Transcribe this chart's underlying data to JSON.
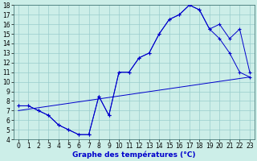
{
  "title": "Graphe des températures (°C)",
  "xlim": [
    -0.5,
    23.5
  ],
  "ylim": [
    4,
    18
  ],
  "xticks": [
    0,
    1,
    2,
    3,
    4,
    5,
    6,
    7,
    8,
    9,
    10,
    11,
    12,
    13,
    14,
    15,
    16,
    17,
    18,
    19,
    20,
    21,
    22,
    23
  ],
  "yticks": [
    4,
    5,
    6,
    7,
    8,
    9,
    10,
    11,
    12,
    13,
    14,
    15,
    16,
    17,
    18
  ],
  "bg_color": "#cceee8",
  "line_color": "#0000cc",
  "line1_x": [
    0,
    1,
    2,
    3,
    4,
    5,
    6,
    7,
    8,
    9,
    10,
    11,
    12,
    13,
    14,
    15,
    16,
    17,
    18,
    19,
    20,
    21,
    22,
    23
  ],
  "line1_y": [
    7.5,
    7.5,
    7.0,
    6.5,
    5.5,
    5.0,
    4.5,
    4.5,
    8.5,
    6.5,
    11.0,
    11.0,
    12.5,
    13.0,
    15.0,
    16.5,
    17.0,
    18.0,
    17.5,
    15.5,
    16.0,
    14.5,
    15.5,
    11.0
  ],
  "line2_x": [
    0,
    1,
    2,
    3,
    4,
    5,
    6,
    7,
    8,
    9,
    10,
    11,
    12,
    13,
    14,
    15,
    16,
    17,
    18,
    19,
    20,
    21,
    22,
    23
  ],
  "line2_y": [
    7.5,
    7.5,
    7.0,
    6.5,
    5.5,
    5.0,
    4.5,
    4.5,
    8.5,
    6.5,
    11.0,
    11.0,
    12.5,
    13.0,
    15.0,
    16.5,
    17.0,
    18.0,
    17.5,
    15.5,
    14.5,
    13.0,
    11.0,
    10.5
  ],
  "line3_x": [
    0,
    23
  ],
  "line3_y": [
    7.0,
    10.5
  ],
  "grid_color": "#99cccc",
  "tick_fontsize": 5.5,
  "xlabel_fontsize": 6.5
}
